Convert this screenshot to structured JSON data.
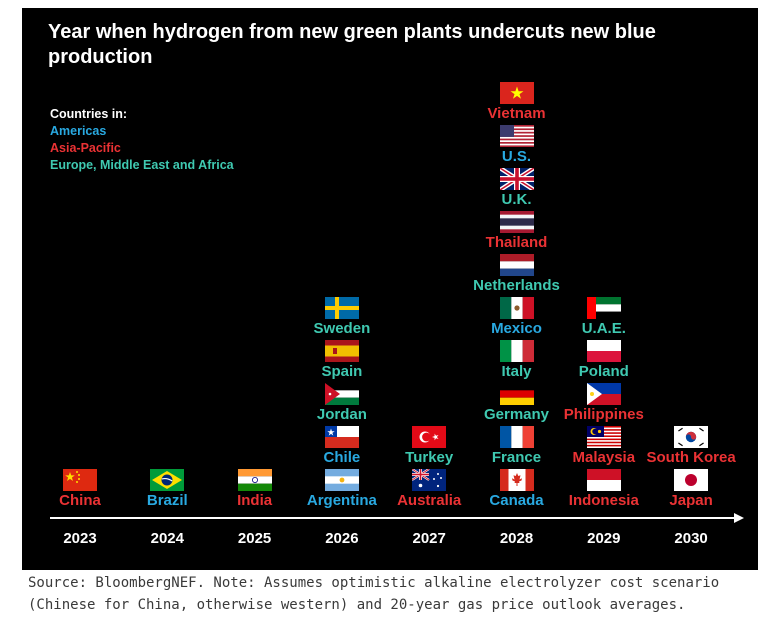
{
  "chart_data": {
    "type": "table",
    "title": "Year when hydrogen from new green plants undercuts new blue production",
    "legend": {
      "heading": "Countries in:",
      "regions": [
        {
          "key": "americas",
          "label": "Americas",
          "color": "#29a9e1"
        },
        {
          "key": "apac",
          "label": "Asia-Pacific",
          "color": "#ea3234"
        },
        {
          "key": "emea",
          "label": "Europe, Middle East and Africa",
          "color": "#3fc9b1"
        }
      ],
      "placement": "top-left"
    },
    "years": [
      "2023",
      "2024",
      "2025",
      "2026",
      "2027",
      "2028",
      "2029",
      "2030"
    ],
    "columns": [
      {
        "year": "2023",
        "countries": [
          {
            "name": "China",
            "region": "apac",
            "flag": "china-flag"
          }
        ]
      },
      {
        "year": "2024",
        "countries": [
          {
            "name": "Brazil",
            "region": "americas",
            "flag": "brazil-flag"
          }
        ]
      },
      {
        "year": "2025",
        "countries": [
          {
            "name": "India",
            "region": "apac",
            "flag": "india-flag"
          }
        ]
      },
      {
        "year": "2026",
        "countries": [
          {
            "name": "Argentina",
            "region": "americas",
            "flag": "argentina-flag"
          },
          {
            "name": "Chile",
            "region": "americas",
            "flag": "chile-flag"
          },
          {
            "name": "Jordan",
            "region": "emea",
            "flag": "jordan-flag"
          },
          {
            "name": "Spain",
            "region": "emea",
            "flag": "spain-flag"
          },
          {
            "name": "Sweden",
            "region": "emea",
            "flag": "sweden-flag"
          }
        ]
      },
      {
        "year": "2027",
        "countries": [
          {
            "name": "Australia",
            "region": "apac",
            "flag": "australia-flag"
          },
          {
            "name": "Turkey",
            "region": "emea",
            "flag": "turkey-flag"
          }
        ]
      },
      {
        "year": "2028",
        "countries": [
          {
            "name": "Canada",
            "region": "americas",
            "flag": "canada-flag"
          },
          {
            "name": "France",
            "region": "emea",
            "flag": "france-flag"
          },
          {
            "name": "Germany",
            "region": "emea",
            "flag": "germany-flag"
          },
          {
            "name": "Italy",
            "region": "emea",
            "flag": "italy-flag"
          },
          {
            "name": "Mexico",
            "region": "americas",
            "flag": "mexico-flag"
          },
          {
            "name": "Netherlands",
            "region": "emea",
            "flag": "netherlands-flag"
          },
          {
            "name": "Thailand",
            "region": "apac",
            "flag": "thailand-flag"
          },
          {
            "name": "U.K.",
            "region": "emea",
            "flag": "uk-flag"
          },
          {
            "name": "U.S.",
            "region": "americas",
            "flag": "us-flag"
          },
          {
            "name": "Vietnam",
            "region": "apac",
            "flag": "vietnam-flag"
          }
        ]
      },
      {
        "year": "2029",
        "countries": [
          {
            "name": "Indonesia",
            "region": "apac",
            "flag": "indonesia-flag"
          },
          {
            "name": "Malaysia",
            "region": "apac",
            "flag": "malaysia-flag"
          },
          {
            "name": "Philippines",
            "region": "apac",
            "flag": "philippines-flag"
          },
          {
            "name": "Poland",
            "region": "emea",
            "flag": "poland-flag"
          },
          {
            "name": "U.A.E.",
            "region": "emea",
            "flag": "uae-flag"
          }
        ]
      },
      {
        "year": "2030",
        "countries": [
          {
            "name": "Japan",
            "region": "apac",
            "flag": "japan-flag"
          },
          {
            "name": "South Korea",
            "region": "apac",
            "flag": "south-korea-flag"
          }
        ]
      }
    ],
    "source": "Source: BloombergNEF. Note: Assumes optimistic alkaline electrolyzer cost scenario (Chinese for China, otherwise western) and 20-year gas price outlook averages."
  },
  "colors": {
    "background": "#000000",
    "axis": "#ffffff",
    "text": "#ffffff"
  }
}
